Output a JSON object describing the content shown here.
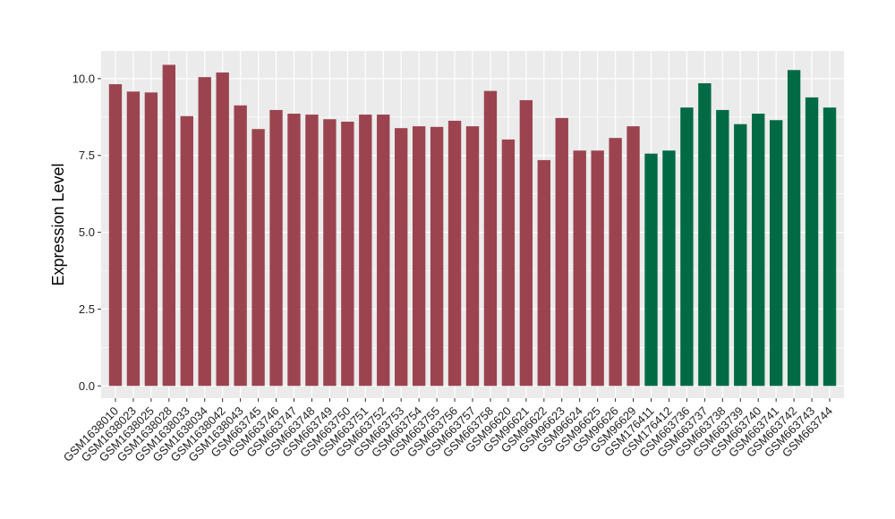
{
  "chart_data": {
    "type": "bar",
    "title": "",
    "xlabel": "",
    "ylabel": "Expression Level",
    "ylim": [
      -0.4,
      10.9
    ],
    "yticks": [
      0.0,
      2.5,
      5.0,
      7.5,
      10.0
    ],
    "ytick_labels": [
      "0.0",
      "2.5",
      "5.0",
      "7.5",
      "10.0"
    ],
    "grid": true,
    "legend": "none",
    "colors": {
      "group1": "#9b4450",
      "group2": "#006a45",
      "panel": "#ebebeb",
      "grid": "#ffffff"
    },
    "categories": [
      "GSM1638010",
      "GSM1638023",
      "GSM1638025",
      "GSM1638028",
      "GSM1638033",
      "GSM1638034",
      "GSM1638042",
      "GSM1638043",
      "GSM663745",
      "GSM663746",
      "GSM663747",
      "GSM663748",
      "GSM663749",
      "GSM663750",
      "GSM663751",
      "GSM663752",
      "GSM663753",
      "GSM663754",
      "GSM663755",
      "GSM663756",
      "GSM663757",
      "GSM663758",
      "GSM96620",
      "GSM96621",
      "GSM96622",
      "GSM96623",
      "GSM96624",
      "GSM96625",
      "GSM96626",
      "GSM96629",
      "GSM176411",
      "GSM176412",
      "GSM663736",
      "GSM663737",
      "GSM663738",
      "GSM663739",
      "GSM663740",
      "GSM663741",
      "GSM663742",
      "GSM663743",
      "GSM663744"
    ],
    "values": [
      9.82,
      9.58,
      9.55,
      10.45,
      8.78,
      10.05,
      10.2,
      9.13,
      8.36,
      8.98,
      8.86,
      8.83,
      8.68,
      8.6,
      8.83,
      8.83,
      8.39,
      8.45,
      8.43,
      8.63,
      8.45,
      9.6,
      8.02,
      9.3,
      7.35,
      8.72,
      7.66,
      7.66,
      8.07,
      8.45,
      7.56,
      7.66,
      9.06,
      9.85,
      8.98,
      8.52,
      8.86,
      8.65,
      10.28,
      9.39,
      9.06
    ],
    "groups": [
      1,
      1,
      1,
      1,
      1,
      1,
      1,
      1,
      1,
      1,
      1,
      1,
      1,
      1,
      1,
      1,
      1,
      1,
      1,
      1,
      1,
      1,
      1,
      1,
      1,
      1,
      1,
      1,
      1,
      1,
      2,
      2,
      2,
      2,
      2,
      2,
      2,
      2,
      2,
      2,
      2
    ]
  }
}
